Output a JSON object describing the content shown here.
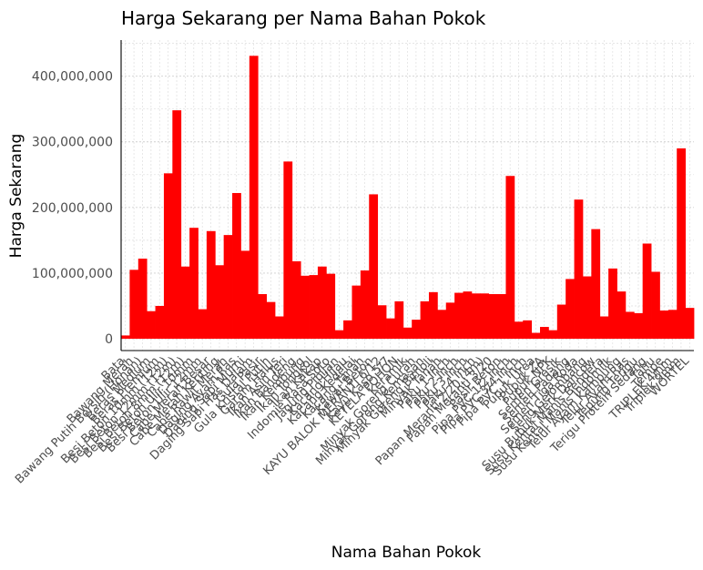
{
  "chart_data": {
    "type": "bar",
    "title": "Harga Sekarang per Nama Bahan Pokok",
    "xlabel": "Nama Bahan Pokok",
    "ylabel": "Harga Sekarang",
    "ylim": [
      -18000000,
      455000000
    ],
    "yticks": [
      0,
      100000000,
      200000000,
      300000000,
      400000000
    ],
    "ytick_labels": [
      "0",
      "100,000,000",
      "200,000,000",
      "300,000,000",
      "400,000,000"
    ],
    "bar_color": "#ff0000",
    "grid": true,
    "categories": [
      "Bata",
      "Bawang Merah",
      "Bawang Putih Bersih (Honan)",
      "Beras Medium",
      "Beras Premium",
      "Besi Beton 10mm (12m)",
      "Besi Beton 12mm (12m)",
      "Besi Beton 8mm (12m)",
      "Besi Beton Ulir 10mm",
      "Besi Beton Ulir 12mm",
      "Cabe Merah Besar",
      "Cabe Merah Keriting",
      "Cabe Rawit Merah",
      "Daging Ayam Ras",
      "Daging Sapi Murni",
      "Daging Sapi Has Dalam",
      "Gula Pasir",
      "Gula Kristal Putih",
      "Garam Halus",
      "Ikan Asin Teri",
      "Ikan Bandeng",
      "Ikan Kembung",
      "Ikan Tongkol",
      "Ikan Kakap",
      "Indomie Rasa Soto",
      "Jagung Pipilan",
      "Kacang Hijau",
      "Kacang Kedelai",
      "Kacang Tanah",
      "Kawat Beton",
      "KAYU BALOK MERANTI 6/12",
      "Kayu Kaso 5/7",
      "KETELA POHON",
      "Keramik",
      "Minyak Goreng Curah",
      "Minyak Goreng Kemasan",
      "Minyak Goreng Bimoli",
      "Minyak Tanah",
      "Paku 1 Inch",
      "Paku 2 Inch",
      "Paku 3 Inch",
      "Paku 4 Inch",
      "Papan Meranti 2/20 (4m)",
      "Papan Meranti 3/20",
      "Pasir Beton",
      "Pipa PVC 1/2 Inch",
      "Pipa PVC 3/4 Inch",
      "Pipa PVC 1 Inch",
      "Pupuk Urea",
      "Pupuk ZA",
      "Pupuk NPK",
      "Semen Gresik",
      "Semen Padang",
      "Semen Tiga Roda",
      "Seng Gelombang",
      "Susu Bubuk Merk Dancow",
      "Susu Kental Manis Bendera",
      "Susu Kental Manis Indomilk",
      "Telur Ayam Kampung",
      "Telur Ayam Ras",
      "Tepung Terigu",
      "Terigu Protein Sedang",
      "Tahu",
      "Tempe",
      "TRIPLEK 4mm",
      "Triplek 9mm",
      "WORTEL"
    ],
    "values": [
      5000000,
      105000000,
      122000000,
      42000000,
      50000000,
      252000000,
      348000000,
      110000000,
      169000000,
      45000000,
      164000000,
      112000000,
      158000000,
      222000000,
      134000000,
      431000000,
      68000000,
      56000000,
      34000000,
      270000000,
      118000000,
      96000000,
      97000000,
      110000000,
      99000000,
      13000000,
      28000000,
      81000000,
      104000000,
      220000000,
      51000000,
      31000000,
      57000000,
      17000000,
      29000000,
      57000000,
      71000000,
      44000000,
      55000000,
      70000000,
      72000000,
      69000000,
      69000000,
      68000000,
      68000000,
      248000000,
      26000000,
      28000000,
      9000000,
      18000000,
      13000000,
      52000000,
      91000000,
      212000000,
      95000000,
      167000000,
      34000000,
      107000000,
      72000000,
      41000000,
      39000000,
      145000000,
      102000000,
      43000000,
      44000000,
      290000000,
      47000000
    ]
  }
}
